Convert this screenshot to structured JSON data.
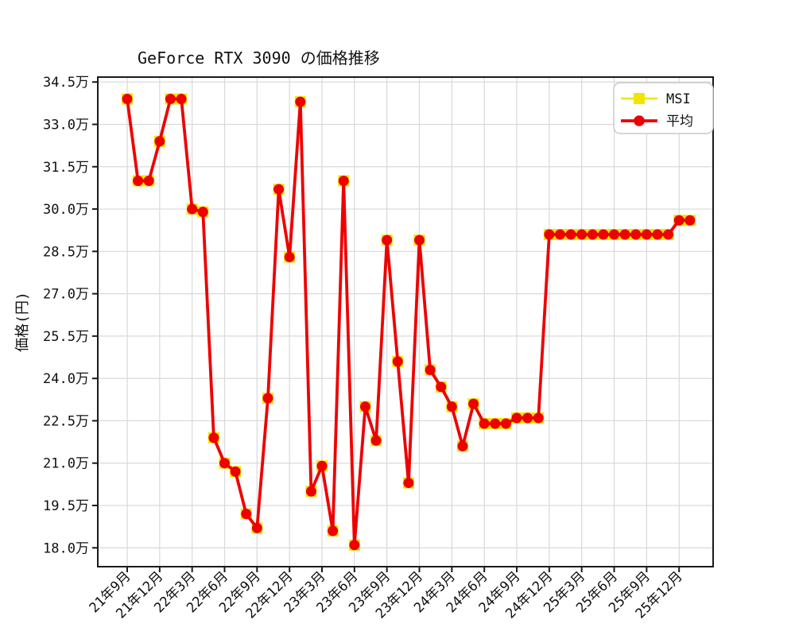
{
  "title": "GeForce RTX 3090 の価格推移",
  "ylabel": "価格(円)",
  "colors": {
    "msi_yellow": "#f2e400",
    "avg_red": "#ee0000",
    "grid": "#d9d9d9",
    "spine": "#1a1a1a",
    "legend_border": "#c9c9c9",
    "background": "#ffffff"
  },
  "chart_data": {
    "type": "line",
    "title": "GeForce RTX 3090 の価格推移",
    "xlabel": "",
    "ylabel": "価格(円)",
    "values_unit": "万円 (×10,000 JPY)",
    "grid": true,
    "legend_position": "upper right",
    "x_months": [
      "2021-09",
      "2021-10",
      "2021-11",
      "2021-12",
      "2022-01",
      "2022-02",
      "2022-03",
      "2022-04",
      "2022-05",
      "2022-06",
      "2022-07",
      "2022-08",
      "2022-09",
      "2022-10",
      "2022-11",
      "2022-12",
      "2023-01",
      "2023-02",
      "2023-03",
      "2023-04",
      "2023-05",
      "2023-06",
      "2023-07",
      "2023-08",
      "2023-09",
      "2023-10",
      "2023-11",
      "2023-12",
      "2024-01",
      "2024-02",
      "2024-03",
      "2024-04",
      "2024-05",
      "2024-06",
      "2024-07",
      "2024-08",
      "2024-09",
      "2024-10",
      "2024-11",
      "2024-12",
      "2025-01",
      "2025-02",
      "2025-03",
      "2025-04",
      "2025-05",
      "2025-06",
      "2025-07",
      "2025-08",
      "2025-09",
      "2025-10",
      "2025-11",
      "2025-12",
      "2026-01"
    ],
    "x_tick_labels": [
      "21年9月",
      "21年12月",
      "22年3月",
      "22年6月",
      "22年9月",
      "22年12月",
      "23年3月",
      "23年6月",
      "23年9月",
      "23年12月",
      "24年3月",
      "24年6月",
      "24年9月",
      "24年12月",
      "25年3月",
      "25年6月",
      "25年9月",
      "25年12月"
    ],
    "x_tick_every_months": 3,
    "y_tick_labels": [
      "18.0万",
      "19.5万",
      "21.0万",
      "22.5万",
      "24.0万",
      "25.5万",
      "27.0万",
      "28.5万",
      "30.0万",
      "31.5万",
      "33.0万",
      "34.5万"
    ],
    "y_tick_values": [
      18.0,
      19.5,
      21.0,
      22.5,
      24.0,
      25.5,
      27.0,
      28.5,
      30.0,
      31.5,
      33.0,
      34.5
    ],
    "series": [
      {
        "name": "MSI",
        "color": "#f2e400",
        "marker": "square",
        "values": [
          33.9,
          31.0,
          31.0,
          32.4,
          33.9,
          33.9,
          30.0,
          29.9,
          21.9,
          21.0,
          20.7,
          19.2,
          18.7,
          23.3,
          30.7,
          28.3,
          33.8,
          20.0,
          20.9,
          18.6,
          31.0,
          18.1,
          23.0,
          21.8,
          28.9,
          24.6,
          20.3,
          28.9,
          24.3,
          23.7,
          23.0,
          21.6,
          23.1,
          22.4,
          22.4,
          22.4,
          22.6,
          22.6,
          22.6,
          29.1,
          29.1,
          29.1,
          29.1,
          29.1,
          29.1,
          29.1,
          29.1,
          29.1,
          29.1,
          29.1,
          29.1,
          29.6,
          29.6
        ]
      },
      {
        "name": "平均",
        "color": "#ee0000",
        "marker": "circle",
        "values": [
          33.9,
          31.0,
          31.0,
          32.4,
          33.9,
          33.9,
          30.0,
          29.9,
          21.9,
          21.0,
          20.7,
          19.2,
          18.7,
          23.3,
          30.7,
          28.3,
          33.8,
          20.0,
          20.9,
          18.6,
          31.0,
          18.1,
          23.0,
          21.8,
          28.9,
          24.6,
          20.3,
          28.9,
          24.3,
          23.7,
          23.0,
          21.6,
          23.1,
          22.4,
          22.4,
          22.4,
          22.6,
          22.6,
          22.6,
          29.1,
          29.1,
          29.1,
          29.1,
          29.1,
          29.1,
          29.1,
          29.1,
          29.1,
          29.1,
          29.1,
          29.1,
          29.6,
          29.6
        ]
      }
    ]
  }
}
